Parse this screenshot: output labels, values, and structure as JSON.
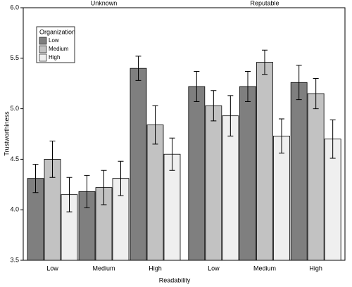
{
  "chart_data": [
    {
      "type": "bar",
      "title": "Unknown",
      "y_label": "Trustworthiness",
      "x_label": "Readability",
      "legend_title": "Organization",
      "ylim": [
        3.5,
        6.0
      ],
      "yticks": [
        {
          "value": 3.5,
          "label": "3.5"
        },
        {
          "value": 4,
          "label": "4.0"
        },
        4.5,
        {
          "value": 5,
          "label": "5.0"
        },
        5.5,
        {
          "value": 6,
          "label": "6.0"
        }
      ],
      "categories": [
        "Low",
        "Medium",
        "High"
      ],
      "series": [
        {
          "name": "Low",
          "color": "#7f7f7f",
          "values": [
            4.31,
            4.18,
            5.4
          ],
          "errors": [
            0.14,
            0.16,
            0.12
          ]
        },
        {
          "name": "Medium",
          "color": "#c2c2c2",
          "values": [
            4.5,
            4.22,
            4.84
          ],
          "errors": [
            0.18,
            0.17,
            0.19
          ]
        },
        {
          "name": "High",
          "color": "#efefef",
          "values": [
            4.15,
            4.31,
            4.55
          ],
          "errors": [
            0.17,
            0.17,
            0.16
          ]
        }
      ]
    },
    {
      "type": "bar",
      "title": "Reputable",
      "categories": [
        "Low",
        "Medium",
        "High"
      ],
      "series": [
        {
          "values": [
            5.22,
            5.22,
            5.26
          ],
          "errors": [
            0.15,
            0.15,
            0.17
          ]
        },
        {
          "values": [
            5.03,
            5.46,
            5.15
          ],
          "errors": [
            0.15,
            0.12,
            0.15
          ]
        },
        {
          "values": [
            4.93,
            4.73,
            4.7
          ],
          "errors": [
            0.2,
            0.17,
            0.19
          ]
        }
      ]
    }
  ]
}
